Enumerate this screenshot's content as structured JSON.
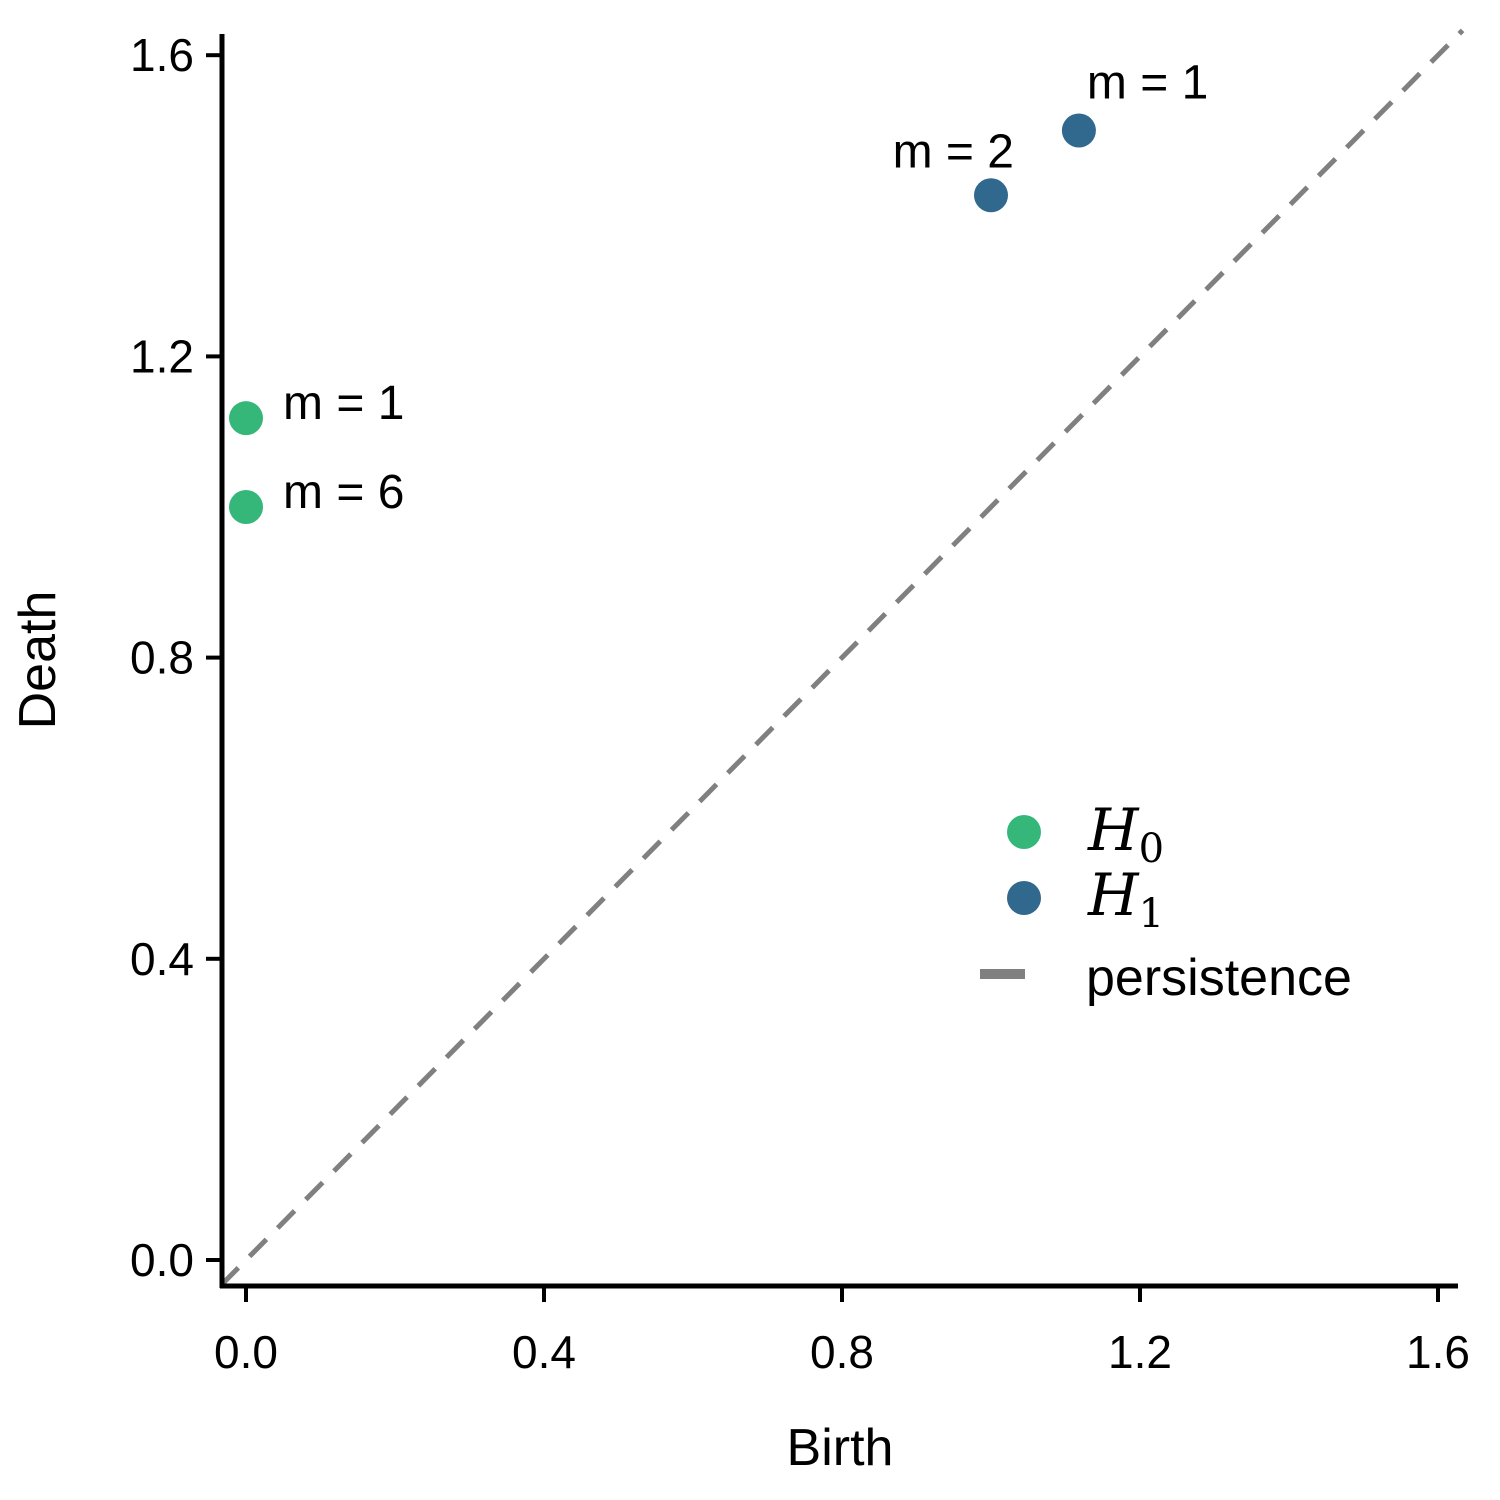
{
  "chart_data": {
    "type": "scatter",
    "xlabel": "Birth",
    "ylabel": "Death",
    "xlim": [
      -0.033,
      1.633
    ],
    "ylim": [
      -0.033,
      1.633
    ],
    "x_ticks": [
      0.0,
      0.4,
      0.8,
      1.2,
      1.6
    ],
    "x_tick_labels": [
      "0.0",
      "0.4",
      "0.8",
      "1.2",
      "1.6"
    ],
    "y_ticks": [
      0.0,
      0.4,
      0.8,
      1.2,
      1.6
    ],
    "y_tick_labels": [
      "0.0",
      "0.4",
      "0.8",
      "1.2",
      "1.6"
    ],
    "grid": false,
    "legend_position": "center-right",
    "series": [
      {
        "name": "H0",
        "math_base": "H",
        "math_sub": "0",
        "color": "#35b779",
        "points": [
          {
            "x": 0.0,
            "y": 1.118,
            "label": "m = 1"
          },
          {
            "x": 0.0,
            "y": 1.0,
            "label": "m = 6"
          }
        ]
      },
      {
        "name": "H1",
        "math_base": "H",
        "math_sub": "1",
        "color": "#31688e",
        "points": [
          {
            "x": 1.0,
            "y": 1.414,
            "label": "m = 2"
          },
          {
            "x": 1.118,
            "y": 1.5,
            "label": "m = 1"
          }
        ]
      }
    ],
    "reference_line": {
      "name": "persistence",
      "label": "persistence",
      "color": "#808080",
      "style": "dashed",
      "from": [
        -0.033,
        -0.033
      ],
      "to": [
        1.633,
        1.633
      ]
    }
  }
}
